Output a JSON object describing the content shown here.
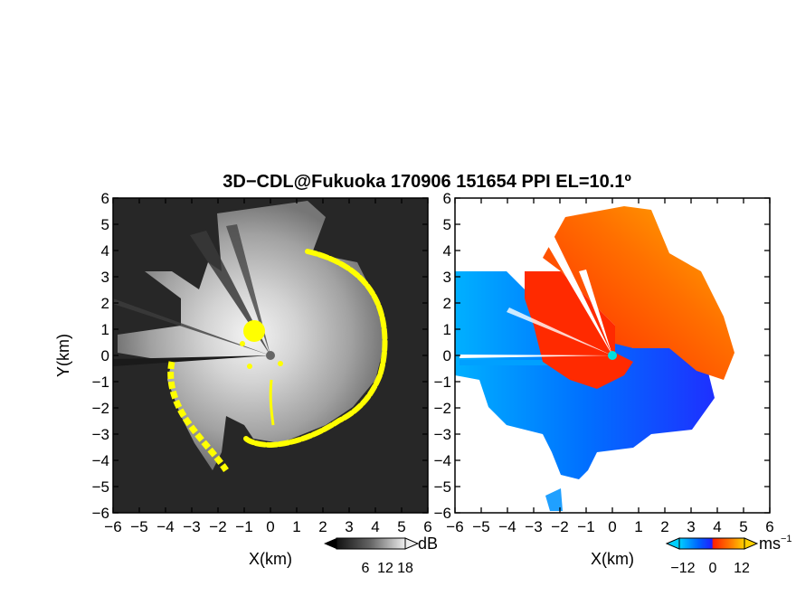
{
  "figure": {
    "title": "3D−CDL@Fukuoka 170906 151654 PPI EL=10.1º"
  },
  "left_panel": {
    "xlabel": "X(km)",
    "ylabel": "Y(km)",
    "colorbar_unit": "dB",
    "colorbar_ticks": [
      "6",
      "12",
      "18"
    ],
    "colormap": [
      "#1a1a1a",
      "#555555",
      "#8c8c8c",
      "#c4c4c4",
      "#ffffff"
    ],
    "overlay_color": "#ffff00"
  },
  "right_panel": {
    "xlabel": "X(km)",
    "colorbar_unit": "ms",
    "colorbar_unit_exp": "−1",
    "colorbar_ticks": [
      "−12",
      "0",
      "12"
    ],
    "colormap": [
      "#00b4ff",
      "#0050ff",
      "#2020ff",
      "#ff2000",
      "#ff8000",
      "#ffb000"
    ],
    "center_marker_color": "#00e0e0"
  },
  "axes": {
    "xticks": [
      "−6",
      "−5",
      "−4",
      "−3",
      "−2",
      "−1",
      "0",
      "1",
      "2",
      "3",
      "4",
      "5",
      "6"
    ],
    "yticks": [
      "6",
      "5",
      "4",
      "3",
      "2",
      "1",
      "0",
      "−1",
      "−2",
      "−3",
      "−4",
      "−5",
      "−6"
    ],
    "xlim": [
      -6,
      6
    ],
    "ylim": [
      -6,
      6
    ]
  }
}
